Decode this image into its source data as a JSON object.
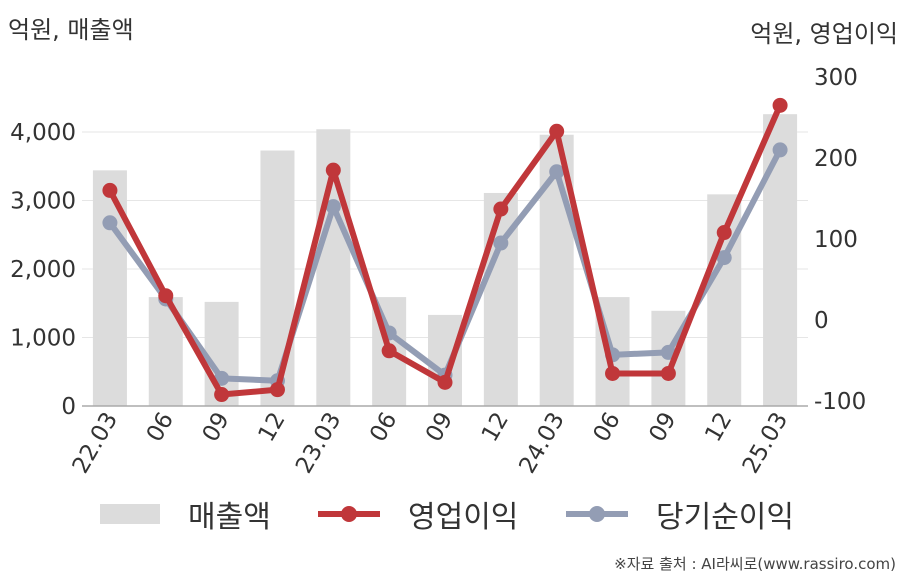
{
  "unit_left": "억원, 매출액",
  "unit_right": "억원, 영업이익",
  "source": "※자료 출처 : AI라씨로(www.rassiro.com)",
  "colors": {
    "revenue": "#dcdcdc",
    "operating": "#c0373a",
    "net": "#939db4",
    "grid": "#e6e6e6",
    "axis": "#aaaaaa",
    "text": "#333333"
  },
  "chart_data": {
    "type": "bar",
    "categories": [
      "22.03",
      "06",
      "09",
      "12",
      "23.03",
      "06",
      "09",
      "12",
      "24.03",
      "06",
      "09",
      "12",
      "25.03"
    ],
    "left_axis": {
      "ylim": [
        0,
        4000
      ],
      "ticks": [
        "0",
        "1,000",
        "2,000",
        "3,000",
        "4,000"
      ],
      "tick_values": [
        0,
        1000,
        2000,
        3000,
        4000
      ]
    },
    "right_axis": {
      "ylim": [
        -100,
        300
      ],
      "ticks": [
        "-100",
        "0",
        "100",
        "200",
        "300"
      ],
      "tick_values": [
        -100,
        0,
        100,
        200,
        300
      ]
    },
    "series": [
      {
        "name": "매출액",
        "type": "bar",
        "axis": "left",
        "color": "#dcdcdc",
        "values": [
          3440,
          1590,
          1520,
          3730,
          4040,
          1590,
          1330,
          3110,
          3960,
          1590,
          1390,
          3090,
          4260
        ]
      },
      {
        "name": "영업이익",
        "type": "line",
        "axis": "right",
        "color": "#c0373a",
        "values": [
          160,
          30,
          -92,
          -86,
          185,
          -38,
          -77,
          137,
          233,
          -66,
          -66,
          108,
          265
        ]
      },
      {
        "name": "당기순이익",
        "type": "line",
        "axis": "right",
        "color": "#939db4",
        "values": [
          120,
          26,
          -72,
          -75,
          140,
          -16,
          -68,
          95,
          183,
          -43,
          -40,
          77,
          210
        ]
      }
    ],
    "grid": true,
    "legend_position": "bottom"
  }
}
